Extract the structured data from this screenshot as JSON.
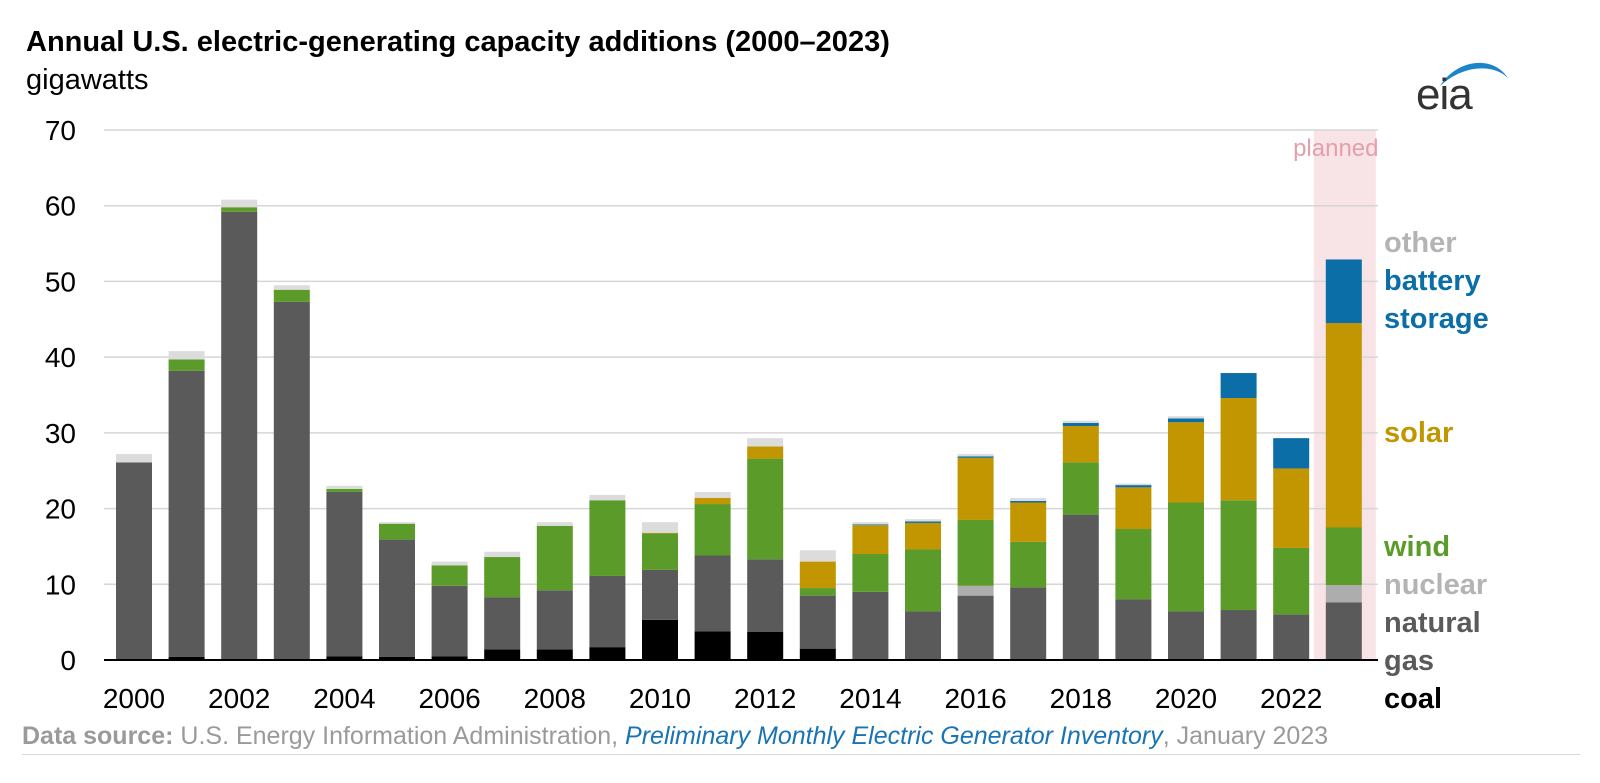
{
  "header": {
    "title": "Annual U.S. electric-generating capacity additions (2000–2023)",
    "subtitle": "gigawatts"
  },
  "logo": {
    "text": "eia",
    "icon": "eia-logo-icon"
  },
  "footer": {
    "label": "Data source:",
    "org": " U.S. Energy Information Administration, ",
    "link": "Preliminary Monthly Electric Generator Inventory",
    "date": ", January 2023"
  },
  "chart_data": {
    "type": "bar",
    "stacked": true,
    "years": [
      2000,
      2001,
      2002,
      2003,
      2004,
      2005,
      2006,
      2007,
      2008,
      2009,
      2010,
      2011,
      2012,
      2013,
      2014,
      2015,
      2016,
      2017,
      2018,
      2019,
      2020,
      2021,
      2022,
      2023
    ],
    "series": [
      {
        "key": "coal",
        "color": "#000000",
        "values": [
          0,
          0.4,
          0,
          0,
          0.5,
          0.4,
          0.5,
          1.4,
          1.4,
          1.7,
          5.3,
          3.8,
          3.7,
          1.5,
          0,
          0,
          0,
          0,
          0,
          0,
          0,
          0,
          0,
          0
        ]
      },
      {
        "key": "natural gas",
        "color": "#5a5a5a",
        "values": [
          26.1,
          37.8,
          59.2,
          47.3,
          21.7,
          15.5,
          9.3,
          6.9,
          7.8,
          9.4,
          6.6,
          10,
          9.6,
          7,
          9,
          6.4,
          8.5,
          9.6,
          19.2,
          8,
          6.4,
          6.6,
          6,
          7.6
        ]
      },
      {
        "key": "nuclear",
        "color": "#adadad",
        "values": [
          0,
          0,
          0,
          0,
          0,
          0,
          0,
          0,
          0,
          0,
          0,
          0,
          0,
          0,
          0,
          0,
          1.3,
          0,
          0,
          0,
          0,
          0,
          0,
          2.3
        ]
      },
      {
        "key": "wind",
        "color": "#5b9b2a",
        "values": [
          0,
          1.5,
          0.6,
          1.6,
          0.4,
          2.1,
          2.7,
          5.3,
          8.5,
          10,
          4.8,
          6.8,
          13.3,
          1,
          5,
          8.2,
          8.7,
          6,
          6.9,
          9.3,
          14.4,
          14.5,
          8.8,
          7.6
        ]
      },
      {
        "key": "solar",
        "color": "#c29600",
        "values": [
          0,
          0,
          0,
          0,
          0,
          0,
          0,
          0,
          0,
          0,
          0.1,
          0.8,
          1.6,
          3.5,
          3.8,
          3.5,
          8.2,
          5.2,
          4.8,
          5.5,
          10.6,
          13.5,
          10.5,
          27
        ]
      },
      {
        "key": "battery storage",
        "color": "#0b6ea6",
        "values": [
          0,
          0,
          0,
          0,
          0,
          0,
          0,
          0,
          0,
          0,
          0,
          0,
          0,
          0,
          0.1,
          0.2,
          0.2,
          0.2,
          0.4,
          0.3,
          0.5,
          3.3,
          4,
          8.4
        ]
      },
      {
        "key": "other",
        "color": "#dcdcdc",
        "values": [
          1.1,
          1.1,
          1,
          0.6,
          0.4,
          0.2,
          0.5,
          0.7,
          0.5,
          0.7,
          1.4,
          0.8,
          1.1,
          1.5,
          0.3,
          0.3,
          0.3,
          0.4,
          0.3,
          0.2,
          0.3,
          0,
          0,
          0
        ]
      }
    ],
    "legend": [
      {
        "label": "other",
        "color": "#b4b4b4"
      },
      {
        "label": "battery\nstorage",
        "color": "#0b6ea6"
      },
      {
        "label": "solar",
        "color": "#c29600"
      },
      {
        "label": "wind",
        "color": "#5b9b2a"
      },
      {
        "label": "nuclear",
        "color": "#b4b4b4"
      },
      {
        "label": "natural\ngas",
        "color": "#5a5a5a"
      },
      {
        "label": "coal",
        "color": "#000000"
      }
    ],
    "ylim": [
      0,
      70
    ],
    "yticks": [
      0,
      10,
      20,
      30,
      40,
      50,
      60,
      70
    ],
    "xtick_labels": [
      "2000",
      "2002",
      "2004",
      "2006",
      "2008",
      "2010",
      "2012",
      "2014",
      "2016",
      "2018",
      "2020",
      "2022"
    ],
    "grid": true,
    "planned": {
      "year": 2023,
      "label": "planned",
      "shade": "#f8e4e7",
      "label_color": "#e3a0aa"
    }
  }
}
